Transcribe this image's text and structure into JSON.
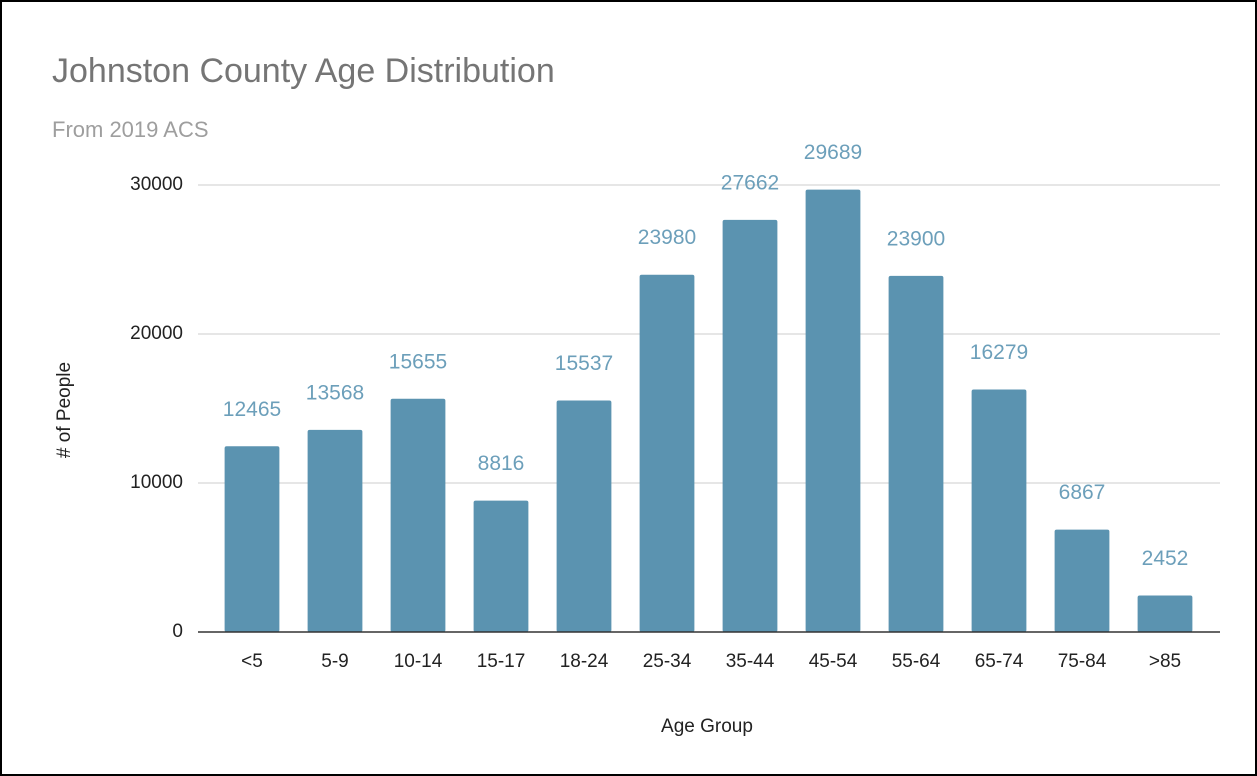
{
  "chart_data": {
    "type": "bar",
    "title": "Johnston County Age Distribution",
    "subtitle": "From 2019 ACS",
    "x_label": "Age Group",
    "y_label": "# of People",
    "categories": [
      "<5",
      "5-9",
      "10-14",
      "15-17",
      "18-24",
      "25-34",
      "35-44",
      "45-54",
      "55-64",
      "65-74",
      "75-84",
      ">85"
    ],
    "values": [
      12465,
      13568,
      15655,
      8816,
      15537,
      23980,
      27662,
      29689,
      23900,
      16279,
      6867,
      2452
    ],
    "color": "#5b93b0",
    "label_color": "#6c9fba",
    "ylim": [
      0,
      30000
    ],
    "yticks": [
      0,
      10000,
      20000,
      30000
    ],
    "grid": true
  }
}
